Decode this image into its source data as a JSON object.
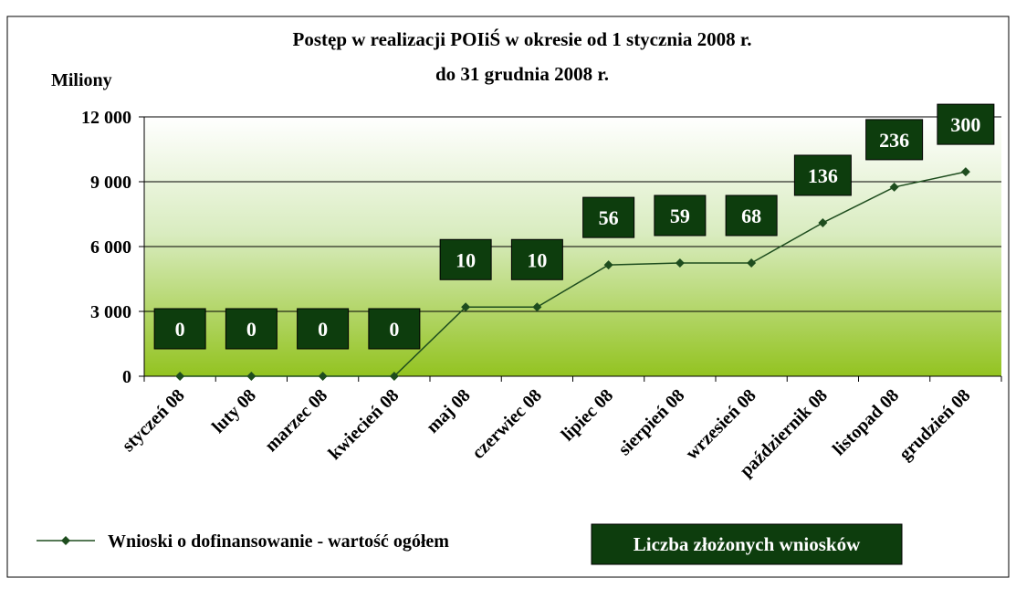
{
  "chart_data": {
    "type": "line",
    "title": [
      "Postęp w realizacji POIiŚ w okresie od 1 stycznia 2008 r.",
      "do 31 grudnia 2008 r."
    ],
    "y_label": "Miliony",
    "categories": [
      "styczeń 08",
      "luty 08",
      "marzec 08",
      "kwiecień 08",
      "maj 08",
      "czerwiec 08",
      "lipiec 08",
      "sierpień 08",
      "wrzesień 08",
      "październik 08",
      "listopad 08",
      "grudzień 08"
    ],
    "series": [
      {
        "name": "Wnioski o dofinansowanie - wartość ogółem",
        "color": "#1e4d1e",
        "values": [
          0,
          0,
          0,
          0,
          3200,
          3200,
          5150,
          5240,
          5240,
          7100,
          8750,
          9460
        ]
      },
      {
        "name": "Liczba złożonych wniosków",
        "color": "#0d3d0d",
        "values": [
          0,
          0,
          0,
          0,
          10,
          10,
          56,
          59,
          68,
          136,
          236,
          300
        ]
      }
    ],
    "ylim": [
      0,
      12000
    ],
    "yticks": [
      0,
      {
        "value": 3000,
        "label": "3 000"
      },
      {
        "value": 6000,
        "label": "6 000"
      },
      {
        "value": 9000,
        "label": "9 000"
      },
      {
        "value": 12000,
        "label": "12 000"
      }
    ],
    "grid": true
  }
}
